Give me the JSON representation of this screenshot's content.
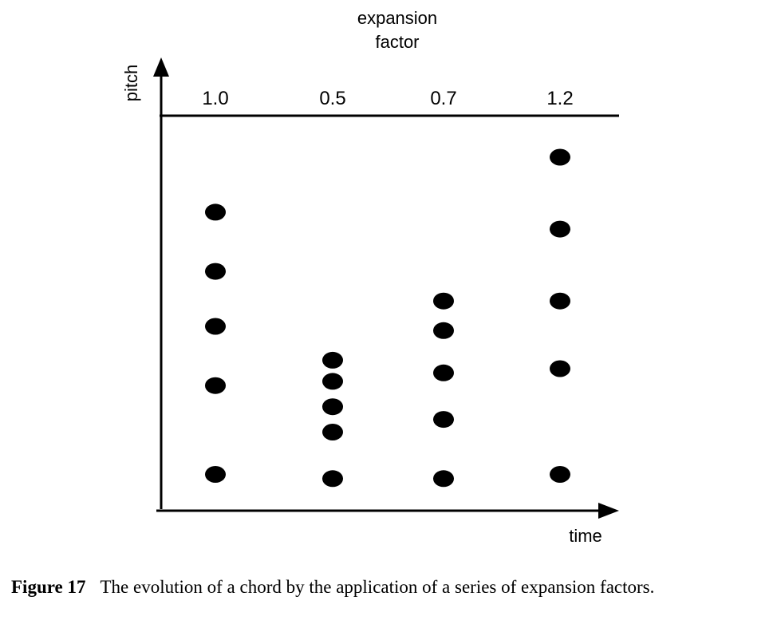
{
  "chart_data": {
    "type": "scatter",
    "title": "",
    "top_axis_title": "expansion\nfactor",
    "xlabel": "time",
    "ylabel": "pitch",
    "categories": [
      "1.0",
      "0.5",
      "0.7",
      "1.2"
    ],
    "expansion_factors": [
      1.0,
      0.5,
      0.7,
      1.2
    ],
    "pitch_range": [
      0,
      100
    ],
    "grid": false,
    "legend": "none",
    "series": [
      {
        "values": [
          {
            "x": "1.0",
            "pitches": [
              15,
              36,
              50,
              63,
              77
            ]
          },
          {
            "x": "0.5",
            "pitches": [
              14,
              25,
              31,
              37,
              42
            ]
          },
          {
            "x": "0.7",
            "pitches": [
              14,
              28,
              39,
              49,
              56
            ]
          },
          {
            "x": "1.2",
            "pitches": [
              15,
              40,
              56,
              73,
              90
            ]
          }
        ]
      }
    ],
    "marker_color": "#000000"
  },
  "caption": {
    "label": "Figure 17",
    "text": "The evolution of a chord by the application of a series of expansion factors."
  }
}
